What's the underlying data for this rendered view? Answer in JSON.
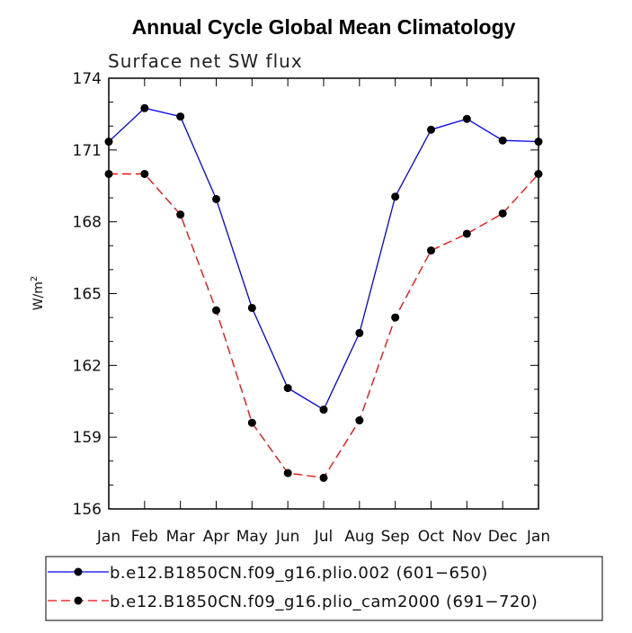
{
  "chart_data": {
    "type": "line",
    "title": "Annual Cycle Global Mean Climatology",
    "subtitle": "Surface net SW flux",
    "ylabel": "W/m",
    "ylabel_superscript": "2",
    "categories": [
      "Jan",
      "Feb",
      "Mar",
      "Apr",
      "May",
      "Jun",
      "Jul",
      "Aug",
      "Sep",
      "Oct",
      "Nov",
      "Dec",
      "Jan"
    ],
    "ylim": [
      156,
      174
    ],
    "yticks": [
      156,
      159,
      162,
      165,
      168,
      171,
      174
    ],
    "legend_position": "bottom",
    "series": [
      {
        "name": "b.e12.B1850CN.f09_g16.plio.002 (601-650)",
        "label": "b.e12.B1850CN.f09_g16.plio.002 (601−650)",
        "color": "#0000ff",
        "dash": "solid",
        "values": [
          171.35,
          172.75,
          172.4,
          168.95,
          164.4,
          161.05,
          160.15,
          163.35,
          169.05,
          171.85,
          172.3,
          171.4,
          171.35
        ]
      },
      {
        "name": "b.e12.B1850CN.f09_g16.plio_cam2000 (691-720)",
        "label": "b.e12.B1850CN.f09_g16.plio_cam2000 (691−720)",
        "color": "#ff0000",
        "dash": "dashed",
        "values": [
          170.0,
          170.0,
          168.3,
          164.3,
          159.6,
          157.5,
          157.3,
          159.7,
          164.0,
          166.8,
          167.5,
          168.35,
          170.0
        ]
      }
    ]
  }
}
